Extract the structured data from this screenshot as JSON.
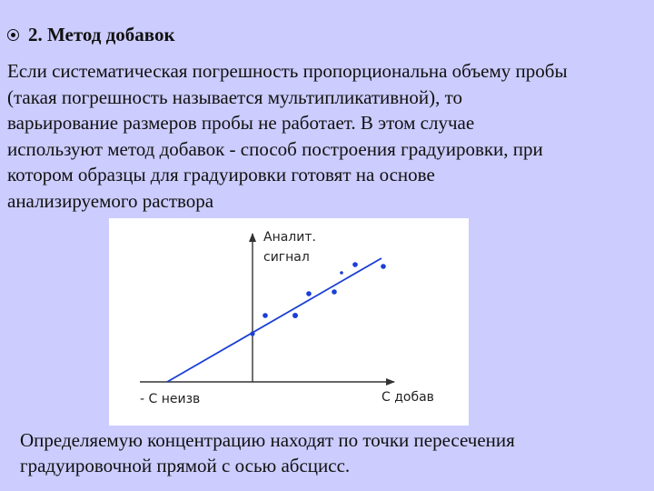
{
  "heading": "2. Метод добавок",
  "paragraph_lines": [
    "Если систематическая погрешность пропорциональна объему пробы",
    "(такая погрешность называется мультипликативной), то",
    "варьирование размеров пробы не работает. В этом случае",
    "используют метод добавок - способ построения градуировки, при",
    "котором образцы для градуировки готовят на основе",
    "анализируемого раствора"
  ],
  "figure": {
    "y_label_line1": "Аналит.",
    "y_label_line2": "сигнал",
    "x_label": "С добав",
    "neg_label": "- С неизв",
    "line_color": "#1a3fd6",
    "point_color": "#1a3fd6"
  },
  "caption_lines": [
    "Определяемую концентрацию находят по точки пересечения",
    "градуировочной прямой с осью абсцисс."
  ]
}
